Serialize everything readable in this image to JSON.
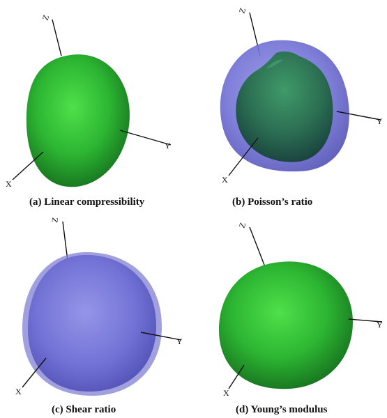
{
  "figure": {
    "panels": [
      {
        "caption": "(a) Linear compressibility",
        "surface": "linear-compressibility",
        "color": "#2ec23a"
      },
      {
        "caption": "(b) Poisson’s ratio",
        "surface": "poissons-ratio",
        "color": "#2a7a55",
        "outer_color": "#6f6fd6"
      },
      {
        "caption": "(c) Shear ratio",
        "surface": "shear-ratio",
        "color": "#7474d8"
      },
      {
        "caption": "(d) Young’s modulus",
        "surface": "youngs-modulus",
        "color": "#36c13a"
      }
    ],
    "axis_labels": {
      "x": "X",
      "y": "Y",
      "z": "Z"
    }
  }
}
